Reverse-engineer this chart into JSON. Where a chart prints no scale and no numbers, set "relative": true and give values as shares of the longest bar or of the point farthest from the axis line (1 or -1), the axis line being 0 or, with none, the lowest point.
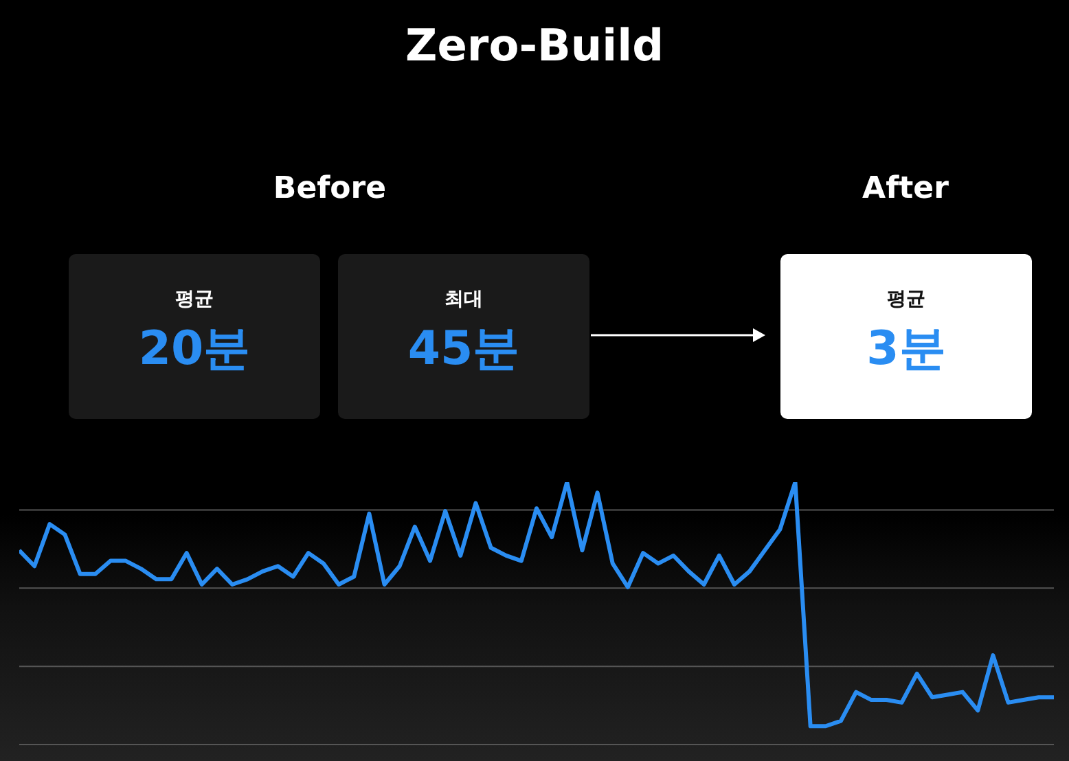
{
  "chart_data": [
    {
      "type": "other",
      "title": "Zero-Build",
      "annotations": [
        "Before",
        "After",
        "평균",
        "20분",
        "최대",
        "45분",
        "평균",
        "3분"
      ]
    },
    {
      "type": "line",
      "relative": true,
      "grid": true,
      "color": "#2a8df2",
      "categories": [
        null,
        null,
        null,
        null,
        null,
        null,
        null,
        null,
        null,
        null,
        null,
        null,
        null,
        null,
        null,
        null,
        null,
        null,
        null,
        null,
        null,
        null,
        null,
        null,
        null,
        null,
        null,
        null,
        null,
        null,
        null,
        null,
        null,
        null,
        null,
        null,
        null,
        null,
        null,
        null,
        null,
        null,
        null,
        null,
        null,
        null,
        null,
        null,
        null,
        null,
        null,
        null,
        null,
        null,
        null,
        null,
        null,
        null,
        null,
        null,
        null,
        null,
        null,
        null,
        null,
        null,
        null,
        null,
        null
      ],
      "values": [
        0.74,
        0.68,
        0.84,
        0.8,
        0.65,
        0.65,
        0.7,
        0.7,
        0.67,
        0.63,
        0.63,
        0.73,
        0.61,
        0.67,
        0.61,
        0.63,
        0.66,
        0.68,
        0.64,
        0.73,
        0.69,
        0.61,
        0.64,
        0.88,
        0.61,
        0.68,
        0.83,
        0.7,
        0.89,
        0.72,
        0.92,
        0.75,
        0.72,
        0.7,
        0.9,
        0.79,
        1,
        0.74,
        0.96,
        0.69,
        0.6,
        0.73,
        0.69,
        0.72,
        0.66,
        0.61,
        0.72,
        0.61,
        0.66,
        0.74,
        0.82,
        1,
        0.07,
        0.07,
        0.09,
        0.2,
        0.17,
        0.17,
        0.16,
        0.27,
        0.18,
        0.19,
        0.2,
        0.13,
        0.34,
        0.16,
        0.17,
        0.18,
        0.18
      ]
    }
  ]
}
